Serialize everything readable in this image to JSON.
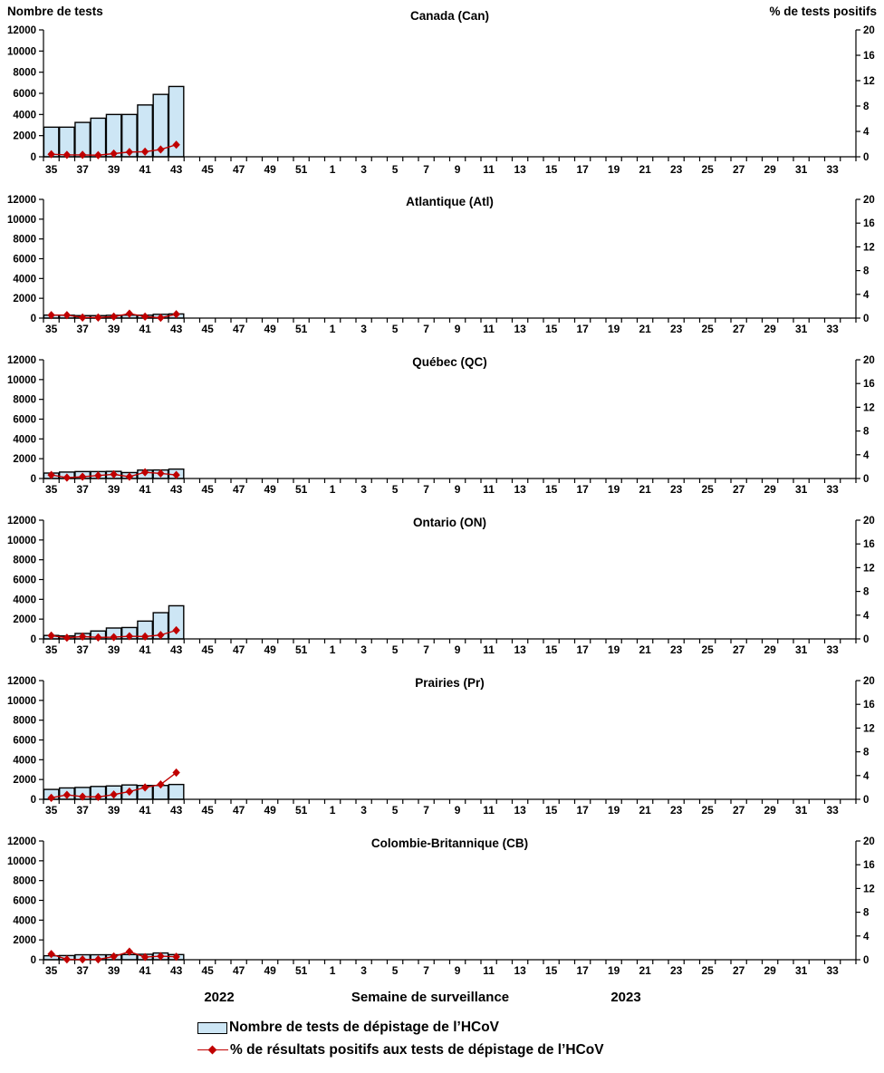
{
  "chart_data": {
    "type": "bar+line",
    "panels_layout": "6 vertically stacked subplots with shared axis scales",
    "x_axis": {
      "label": "Semaine de surveillance",
      "year_left": "2022",
      "year_right": "2023",
      "tick_labels": [
        "35",
        "37",
        "39",
        "41",
        "43",
        "45",
        "47",
        "49",
        "51",
        "1",
        "3",
        "5",
        "7",
        "9",
        "11",
        "13",
        "15",
        "17",
        "19",
        "21",
        "23",
        "25",
        "27",
        "29",
        "31",
        "33"
      ],
      "total_week_slots": 52
    },
    "left_axis": {
      "title": "Nombre de tests",
      "range": [
        0,
        12000
      ],
      "ticks": [
        0,
        2000,
        4000,
        6000,
        8000,
        10000,
        12000
      ]
    },
    "right_axis": {
      "title": "% de tests positifs",
      "range": [
        0,
        20
      ],
      "ticks": [
        0,
        4,
        8,
        12,
        16,
        20
      ]
    },
    "data_weeks": [
      35,
      36,
      37,
      38,
      39,
      40,
      41,
      42,
      43
    ],
    "panels": [
      {
        "title": "Canada (Can)",
        "tests": [
          2800,
          2800,
          3250,
          3650,
          4000,
          4000,
          4900,
          5900,
          6650
        ],
        "pct_positive": [
          0.4,
          0.3,
          0.3,
          0.25,
          0.5,
          0.75,
          0.8,
          1.15,
          1.9
        ]
      },
      {
        "title": "Atlantique (Atl)",
        "tests": [
          300,
          290,
          250,
          250,
          280,
          300,
          290,
          380,
          420
        ],
        "pct_positive": [
          0.5,
          0.5,
          0.1,
          0.1,
          0.25,
          0.75,
          0.25,
          0.05,
          0.65
        ]
      },
      {
        "title": "Québec (QC)",
        "tests": [
          550,
          650,
          700,
          700,
          720,
          600,
          850,
          860,
          950
        ],
        "pct_positive": [
          0.6,
          0.15,
          0.3,
          0.5,
          0.7,
          0.3,
          1.05,
          0.85,
          0.6
        ]
      },
      {
        "title": "Ontario (ON)",
        "tests": [
          350,
          300,
          550,
          800,
          1100,
          1150,
          1800,
          2650,
          3350
        ],
        "pct_positive": [
          0.55,
          0.2,
          0.4,
          0.25,
          0.3,
          0.45,
          0.4,
          0.65,
          1.45
        ]
      },
      {
        "title": "Prairies (Pr)",
        "tests": [
          1000,
          1150,
          1200,
          1300,
          1350,
          1450,
          1400,
          1400,
          1500
        ],
        "pct_positive": [
          0.25,
          0.75,
          0.45,
          0.4,
          0.8,
          1.3,
          2.0,
          2.5,
          4.5
        ]
      },
      {
        "title": "Colombie-Britannique (CB)",
        "tests": [
          400,
          420,
          500,
          500,
          500,
          520,
          550,
          680,
          520
        ],
        "pct_positive": [
          0.95,
          0.05,
          0.05,
          0.05,
          0.55,
          1.35,
          0.45,
          0.6,
          0.5
        ]
      }
    ],
    "legend": [
      {
        "swatch": "bar",
        "label": "Nombre de tests de dépistage de l’HCoV"
      },
      {
        "swatch": "line-diamond",
        "label": "% de résultats positifs aux tests de dépistage de l’HCoV"
      }
    ],
    "colors": {
      "bar_fill": "#CDE6F5",
      "bar_border": "#000000",
      "line": "#C00000",
      "text": "#000000"
    }
  }
}
